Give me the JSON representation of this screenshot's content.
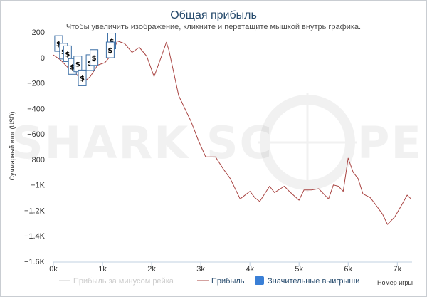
{
  "chart_data": {
    "type": "line",
    "title": "Общая прибыль",
    "subtitle": "Чтобы увеличить изображение, кликните и перетащите мышкой внутрь графика.",
    "xlabel": "Номер игры",
    "ylabel": "Суммарный итог (USD)",
    "xlim": [
      0,
      7300
    ],
    "ylim": [
      -1600,
      200
    ],
    "x_ticks": [
      0,
      1000,
      2000,
      3000,
      4000,
      5000,
      6000,
      7000
    ],
    "x_tick_labels": [
      "0k",
      "1k",
      "2k",
      "3k",
      "4k",
      "5k",
      "6k",
      "7k"
    ],
    "y_ticks": [
      200,
      0,
      -200,
      -400,
      -600,
      -800,
      -1000,
      -1200,
      -1400,
      -1600
    ],
    "y_tick_labels": [
      "200",
      "0",
      "−200",
      "−400",
      "−600",
      "−800",
      "−1K",
      "−1.2K",
      "−1.4K",
      "−1.6K"
    ],
    "grid": false,
    "legend_position": "bottom",
    "series": [
      {
        "name": "Прибыль",
        "color": "#a94442",
        "x": [
          0,
          150,
          300,
          450,
          600,
          750,
          900,
          1050,
          1200,
          1300,
          1450,
          1600,
          1750,
          1900,
          2050,
          2200,
          2300,
          2350,
          2450,
          2550,
          2700,
          2800,
          2950,
          3100,
          3300,
          3450,
          3600,
          3800,
          4000,
          4100,
          4200,
          4400,
          4500,
          4700,
          4800,
          5000,
          5100,
          5250,
          5400,
          5600,
          5700,
          5800,
          5900,
          6000,
          6100,
          6200,
          6300,
          6450,
          6550,
          6700,
          6800,
          6950,
          7100,
          7200,
          7280
        ],
        "values": [
          20,
          -20,
          -80,
          -120,
          -200,
          -150,
          -60,
          -40,
          30,
          130,
          110,
          40,
          80,
          10,
          -150,
          10,
          120,
          60,
          -120,
          -300,
          -420,
          -500,
          -650,
          -780,
          -780,
          -870,
          -950,
          -1110,
          -1050,
          -1100,
          -1130,
          -1010,
          -1060,
          -1010,
          -1050,
          -1120,
          -1040,
          -1040,
          -1030,
          -1110,
          -1000,
          -1010,
          -1050,
          -790,
          -900,
          -950,
          -1070,
          -1100,
          -1150,
          -1230,
          -1310,
          -1250,
          -1150,
          -1080,
          -1110
        ]
      }
    ],
    "legend": [
      {
        "name": "Прибыль за минусом рейка",
        "color": "#cccccc",
        "kind": "line",
        "active": false
      },
      {
        "name": "Прибыль",
        "color": "#a94442",
        "kind": "line",
        "active": true
      },
      {
        "name": "Значительные выигрыши",
        "color": "#3a7fd6",
        "kind": "square",
        "active": true
      }
    ],
    "annotations": {
      "symbol": "$",
      "points": [
        {
          "x": 100,
          "y": 110
        },
        {
          "x": 200,
          "y": 50
        },
        {
          "x": 280,
          "y": 30
        },
        {
          "x": 380,
          "y": -70
        },
        {
          "x": 490,
          "y": -50
        },
        {
          "x": 580,
          "y": -160
        },
        {
          "x": 740,
          "y": -40
        },
        {
          "x": 820,
          "y": 0
        },
        {
          "x": 1180,
          "y": 130
        },
        {
          "x": 1150,
          "y": 60
        }
      ]
    }
  },
  "watermark": {
    "left": "SHARK SC",
    "right": "PE"
  },
  "colors": {
    "title": "#274b6d",
    "series_line": "#a94442",
    "legend_inactive": "#cccccc",
    "marker_border": "#3a6ea5"
  }
}
